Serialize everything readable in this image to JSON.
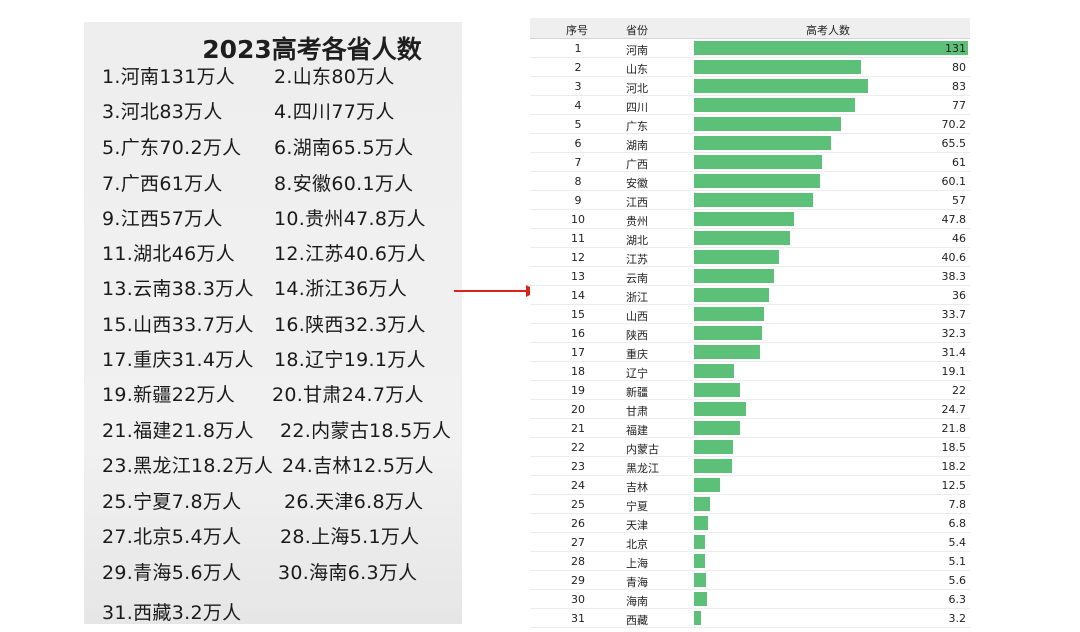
{
  "left": {
    "title": "2023高考各省人数",
    "entries": [
      "1.河南131万人",
      "2.山东80万人",
      "3.河北83万人",
      "4.四川77万人",
      "5.广东70.2万人",
      "6.湖南65.5万人",
      "7.广西61万人",
      "8.安徽60.1万人",
      "9.江西57万人",
      "10.贵州47.8万人",
      "11.湖北46万人",
      "12.江苏40.6万人",
      "13.云南38.3万人",
      "14.浙江36万人",
      "15.山西33.7万人",
      "16.陕西32.3万人",
      "17.重庆31.4万人",
      "18.辽宁19.1万人",
      "19.新疆22万人",
      "20.甘肃24.7万人",
      "21.福建21.8万人",
      "22.内蒙古18.5万人",
      "23.黑龙江18.2万人",
      "24.吉林12.5万人",
      "25.宁夏7.8万人",
      "26.天津6.8万人",
      "27.北京5.4万人",
      "28.上海5.1万人",
      "29.青海5.6万人",
      "30.海南6.3万人",
      "31.西藏3.2万人"
    ]
  },
  "table": {
    "headers": {
      "rank": "序号",
      "province": "省份",
      "count": "高考人数"
    }
  },
  "colors": {
    "bar": "#5cc078",
    "arrow": "#d9261c"
  },
  "chart_data": {
    "type": "bar",
    "title": "高考人数",
    "orientation": "horizontal",
    "ranks": [
      1,
      2,
      3,
      4,
      5,
      6,
      7,
      8,
      9,
      10,
      11,
      12,
      13,
      14,
      15,
      16,
      17,
      18,
      19,
      20,
      21,
      22,
      23,
      24,
      25,
      26,
      27,
      28,
      29,
      30,
      31
    ],
    "categories": [
      "河南",
      "山东",
      "河北",
      "四川",
      "广东",
      "湖南",
      "广西",
      "安徽",
      "江西",
      "贵州",
      "湖北",
      "江苏",
      "云南",
      "浙江",
      "山西",
      "陕西",
      "重庆",
      "辽宁",
      "新疆",
      "甘肃",
      "福建",
      "内蒙古",
      "黑龙江",
      "吉林",
      "宁夏",
      "天津",
      "北京",
      "上海",
      "青海",
      "海南",
      "西藏"
    ],
    "values": [
      131,
      80,
      83,
      77,
      70.2,
      65.5,
      61,
      60.1,
      57,
      47.8,
      46,
      40.6,
      38.3,
      36,
      33.7,
      32.3,
      31.4,
      19.1,
      22,
      24.7,
      21.8,
      18.5,
      18.2,
      12.5,
      7.8,
      6.8,
      5.4,
      5.1,
      5.6,
      6.3,
      3.2
    ],
    "value_labels": [
      "131",
      "80",
      "83",
      "77",
      "70.2",
      "65.5",
      "61",
      "60.1",
      "57",
      "47.8",
      "46",
      "40.6",
      "38.3",
      "36",
      "33.7",
      "32.3",
      "31.4",
      "19.1",
      "22",
      "24.7",
      "21.8",
      "18.5",
      "18.2",
      "12.5",
      "7.8",
      "6.8",
      "5.4",
      "5.1",
      "5.6",
      "6.3",
      "3.2"
    ],
    "xlim": [
      0,
      131
    ]
  }
}
